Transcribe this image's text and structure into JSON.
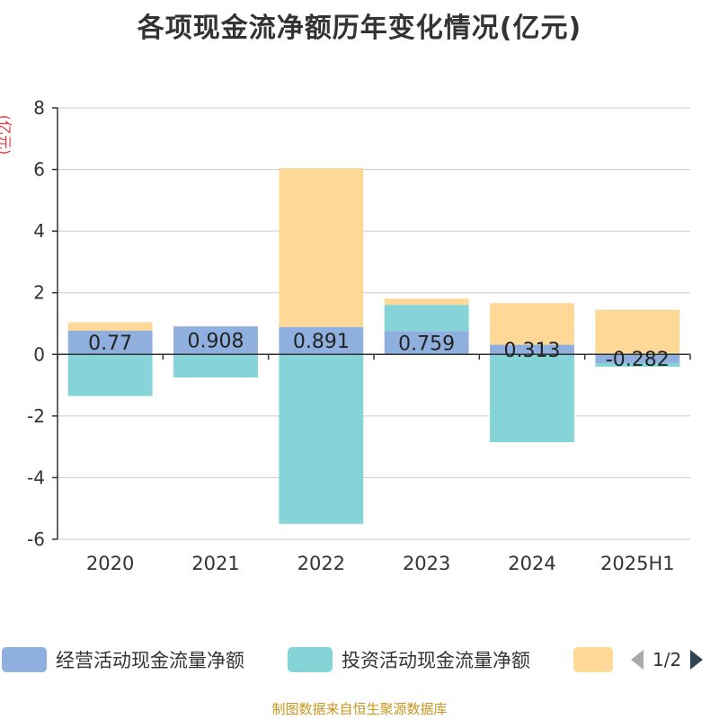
{
  "title": "各项现金流净额历年变化情况(亿元)",
  "unit_label": "(亿元)",
  "legend": {
    "items": [
      {
        "label": "经营活动现金流量净额",
        "color": "#8fb0de"
      },
      {
        "label": "投资活动现金流量净额",
        "color": "#85d5d8"
      },
      {
        "label": "",
        "color": "#fdd897"
      }
    ],
    "page_text": "1/2"
  },
  "footer": "制图数据来自恒生聚源数据库",
  "chart_data": {
    "type": "bar",
    "stacked": true,
    "categories": [
      "2020",
      "2021",
      "2022",
      "2023",
      "2024",
      "2025H1"
    ],
    "ylim": [
      -6,
      8
    ],
    "yticks": [
      -6,
      -4,
      -2,
      0,
      2,
      4,
      6,
      8
    ],
    "grid": true,
    "series": [
      {
        "name": "经营活动现金流量净额",
        "color": "#8fb0de",
        "values": [
          0.77,
          0.908,
          0.891,
          0.759,
          0.313,
          -0.282
        ],
        "labels": [
          "0.77",
          "0.908",
          "0.891",
          "0.759",
          "0.313",
          "-0.282"
        ]
      },
      {
        "name": "投资活动现金流量净额",
        "color": "#85d5d8",
        "values": [
          -1.35,
          -0.75,
          -5.5,
          0.85,
          -2.85,
          -0.12
        ]
      },
      {
        "color": "#fdd897",
        "values": [
          0.27,
          0.0,
          5.15,
          0.2,
          1.35,
          1.45
        ]
      }
    ]
  }
}
